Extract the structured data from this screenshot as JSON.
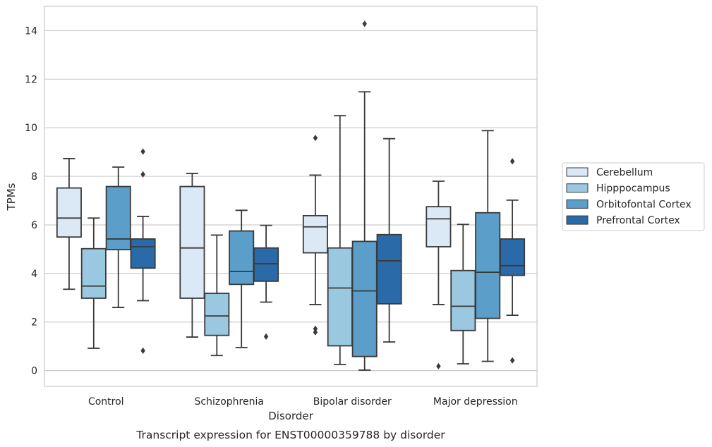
{
  "chart_data": {
    "type": "box",
    "title": "",
    "caption": "Transcript expression for ENST00000359788 by disorder",
    "xlabel": "Disorder",
    "ylabel": "TPMs",
    "ylim": [
      -0.65,
      15
    ],
    "yticks": [
      0,
      2,
      4,
      6,
      8,
      10,
      12,
      14
    ],
    "grid": "horizontal",
    "legend_position": "right",
    "categories": [
      "Control",
      "Schizophrenia",
      "Bipolar disorder",
      "Major depression"
    ],
    "series": [
      {
        "name": "Cerebellum",
        "color": "#dbe8f5",
        "boxes": [
          {
            "whislo": 3.35,
            "q1": 5.5,
            "med": 6.28,
            "q3": 7.52,
            "whishi": 8.73,
            "fliers": []
          },
          {
            "whislo": 1.38,
            "q1": 2.98,
            "med": 5.05,
            "q3": 7.58,
            "whishi": 8.12,
            "fliers": []
          },
          {
            "whislo": 2.72,
            "q1": 4.85,
            "med": 5.92,
            "q3": 6.38,
            "whishi": 8.05,
            "fliers": [
              9.58,
              1.72,
              1.58
            ]
          },
          {
            "whislo": 2.72,
            "q1": 5.1,
            "med": 6.25,
            "q3": 6.75,
            "whishi": 7.8,
            "fliers": [
              0.18
            ]
          }
        ]
      },
      {
        "name": "Hipppocampus",
        "color": "#9ac8e0",
        "boxes": [
          {
            "whislo": 0.92,
            "q1": 2.98,
            "med": 3.48,
            "q3": 5.02,
            "whishi": 6.28,
            "fliers": []
          },
          {
            "whislo": 0.62,
            "q1": 1.45,
            "med": 2.25,
            "q3": 3.18,
            "whishi": 5.58,
            "fliers": []
          },
          {
            "whislo": 0.25,
            "q1": 1.02,
            "med": 3.4,
            "q3": 5.05,
            "whishi": 10.5,
            "fliers": []
          },
          {
            "whislo": 0.28,
            "q1": 1.65,
            "med": 2.65,
            "q3": 4.12,
            "whishi": 6.02,
            "fliers": []
          }
        ]
      },
      {
        "name": "Orbitofontal Cortex",
        "color": "#5a9ec9",
        "boxes": [
          {
            "whislo": 2.6,
            "q1": 4.98,
            "med": 5.42,
            "q3": 7.58,
            "whishi": 8.38,
            "fliers": []
          },
          {
            "whislo": 0.95,
            "q1": 3.55,
            "med": 4.08,
            "q3": 5.75,
            "whishi": 6.6,
            "fliers": []
          },
          {
            "whislo": 0.02,
            "q1": 0.58,
            "med": 3.28,
            "q3": 5.32,
            "whishi": 11.48,
            "fliers": [
              14.28
            ]
          },
          {
            "whislo": 0.38,
            "q1": 2.15,
            "med": 4.05,
            "q3": 6.5,
            "whishi": 9.88,
            "fliers": []
          }
        ]
      },
      {
        "name": "Prefrontal Cortex",
        "color": "#2b6aa8",
        "boxes": [
          {
            "whislo": 2.88,
            "q1": 4.22,
            "med": 5.1,
            "q3": 5.42,
            "whishi": 6.35,
            "fliers": [
              9.02,
              8.08,
              0.82
            ]
          },
          {
            "whislo": 2.82,
            "q1": 3.68,
            "med": 4.4,
            "q3": 5.05,
            "whishi": 5.98,
            "fliers": [
              1.4
            ]
          },
          {
            "whislo": 1.18,
            "q1": 2.75,
            "med": 4.52,
            "q3": 5.6,
            "whishi": 9.55,
            "fliers": []
          },
          {
            "whislo": 2.28,
            "q1": 3.92,
            "med": 4.32,
            "q3": 5.42,
            "whishi": 7.02,
            "fliers": [
              8.62,
              0.42
            ]
          }
        ]
      }
    ]
  }
}
